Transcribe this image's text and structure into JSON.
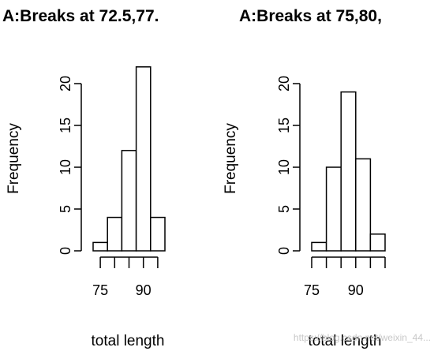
{
  "chart_data": [
    {
      "type": "bar",
      "title": "A:Breaks at 72.5,77.",
      "xlabel": "total length",
      "ylabel": "Frequency",
      "ylim": [
        0,
        20
      ],
      "yticks": [
        "0",
        "5",
        "10",
        "15",
        "20"
      ],
      "xticks": [
        {
          "value": 75,
          "label": "75"
        },
        {
          "value": 90,
          "label": "90"
        }
      ],
      "breaks": [
        72.5,
        77.5,
        82.5,
        87.5,
        92.5,
        97.5
      ],
      "bins": [
        {
          "from": 72.5,
          "to": 77.5,
          "value": 1
        },
        {
          "from": 77.5,
          "to": 82.5,
          "value": 4
        },
        {
          "from": 82.5,
          "to": 87.5,
          "value": 12
        },
        {
          "from": 87.5,
          "to": 92.5,
          "value": 22
        },
        {
          "from": 92.5,
          "to": 97.5,
          "value": 4
        }
      ]
    },
    {
      "type": "bar",
      "title": "A:Breaks at 75,80,",
      "xlabel": "total length",
      "ylabel": "Frequency",
      "ylim": [
        0,
        20
      ],
      "yticks": [
        "0",
        "5",
        "10",
        "15",
        "20"
      ],
      "xticks": [
        {
          "value": 75,
          "label": "75"
        },
        {
          "value": 90,
          "label": "90"
        }
      ],
      "breaks": [
        75,
        80,
        85,
        90,
        95,
        100
      ],
      "bins": [
        {
          "from": 75,
          "to": 80,
          "value": 1
        },
        {
          "from": 80,
          "to": 85,
          "value": 10
        },
        {
          "from": 85,
          "to": 90,
          "value": 19
        },
        {
          "from": 90,
          "to": 95,
          "value": 11
        },
        {
          "from": 95,
          "to": 100,
          "value": 2
        }
      ]
    }
  ],
  "watermark": "https://blog.csdn.net/weixin_44..."
}
